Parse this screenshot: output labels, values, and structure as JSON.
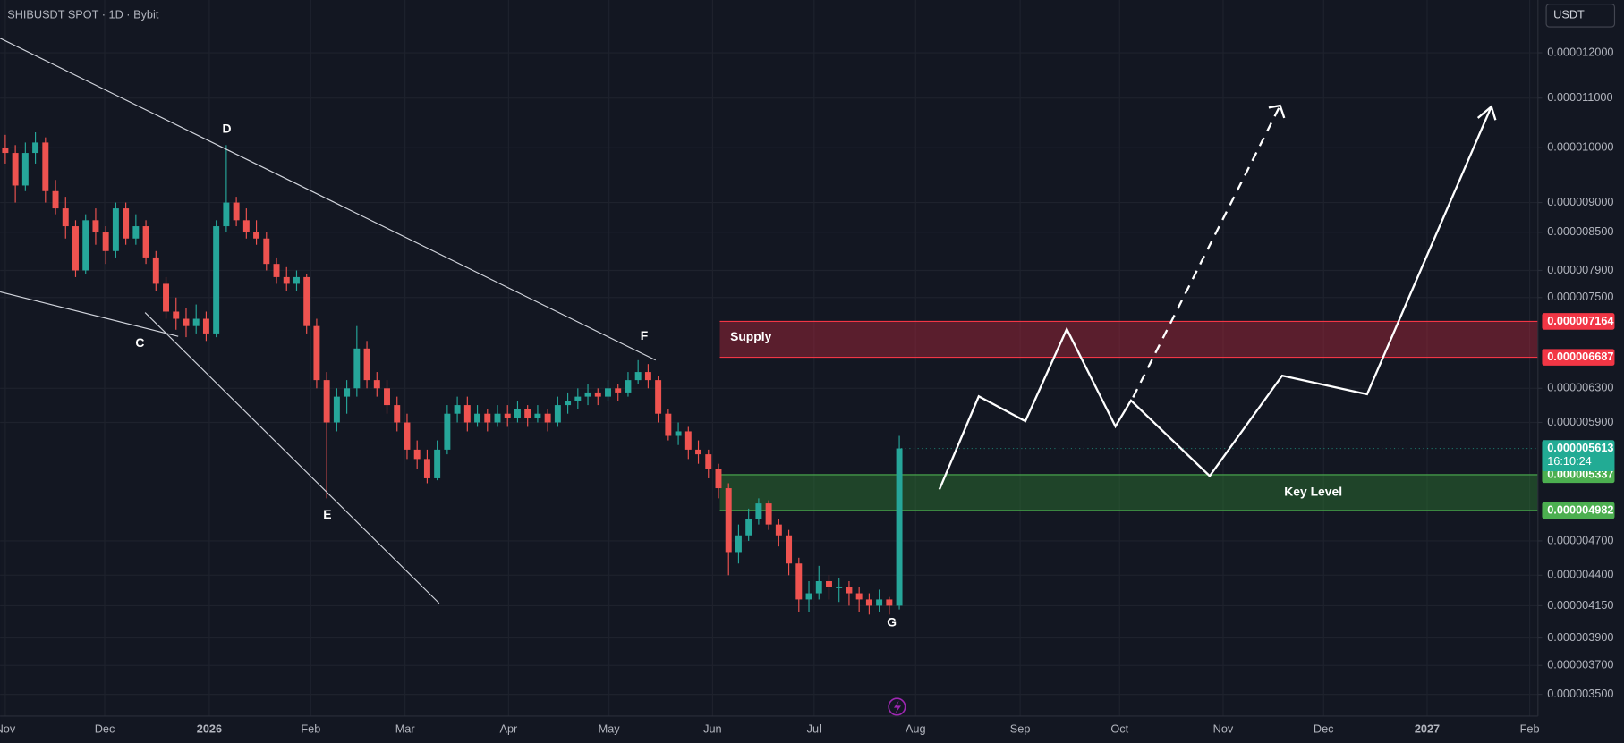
{
  "chart_data": {
    "type": "candlestick",
    "title": "SHIBUSDT SPOT · 1D · Bybit",
    "currency": "USDT",
    "log_scale": true,
    "grid": true,
    "up_color": "#26a69a",
    "down_color": "#ef5350",
    "ylim": [
      3.357e-06,
      1.328e-05
    ],
    "yticks": [
      {
        "value": 1.2e-05,
        "label": "0.000012000"
      },
      {
        "value": 1.1e-05,
        "label": "0.000011000"
      },
      {
        "value": 1e-05,
        "label": "0.000010000"
      },
      {
        "value": 9e-06,
        "label": "0.000009000"
      },
      {
        "value": 8.5e-06,
        "label": "0.000008500"
      },
      {
        "value": 7.9e-06,
        "label": "0.000007900"
      },
      {
        "value": 7.5e-06,
        "label": "0.000007500"
      },
      {
        "value": 6.3e-06,
        "label": "0.000006300"
      },
      {
        "value": 5.9e-06,
        "label": "0.000005900"
      },
      {
        "value": 4.7e-06,
        "label": "0.000004700"
      },
      {
        "value": 4.4e-06,
        "label": "0.000004400"
      },
      {
        "value": 4.15e-06,
        "label": "0.000004150"
      },
      {
        "value": 3.9e-06,
        "label": "0.000003900"
      },
      {
        "value": 3.7e-06,
        "label": "0.000003700"
      },
      {
        "value": 3.5e-06,
        "label": "0.000003500"
      }
    ],
    "xticks": [
      "Nov",
      "Dec",
      "2026",
      "Feb",
      "Mar",
      "Apr",
      "May",
      "Jun",
      "Jul",
      "Aug",
      "Sep",
      "Oct",
      "Nov",
      "Dec",
      "2027",
      "Feb"
    ],
    "candles": [
      [
        1e-05,
        1.025e-05,
        9.7e-06,
        9.9e-06
      ],
      [
        9.9e-06,
        1.005e-05,
        9e-06,
        9.3e-06
      ],
      [
        9.3e-06,
        1.01e-05,
        9.2e-06,
        9.9e-06
      ],
      [
        9.9e-06,
        1.03e-05,
        9.7e-06,
        1.01e-05
      ],
      [
        1.01e-05,
        1.02e-05,
        9e-06,
        9.2e-06
      ],
      [
        9.2e-06,
        9.4e-06,
        8.8e-06,
        8.9e-06
      ],
      [
        8.9e-06,
        9.1e-06,
        8.4e-06,
        8.6e-06
      ],
      [
        8.6e-06,
        8.7e-06,
        7.8e-06,
        7.9e-06
      ],
      [
        7.9e-06,
        8.8e-06,
        7.85e-06,
        8.7e-06
      ],
      [
        8.7e-06,
        8.9e-06,
        8.3e-06,
        8.5e-06
      ],
      [
        8.5e-06,
        8.6e-06,
        8e-06,
        8.2e-06
      ],
      [
        8.2e-06,
        9e-06,
        8.1e-06,
        8.9e-06
      ],
      [
        8.9e-06,
        9e-06,
        8.3e-06,
        8.4e-06
      ],
      [
        8.4e-06,
        8.8e-06,
        8.3e-06,
        8.6e-06
      ],
      [
        8.6e-06,
        8.7e-06,
        8e-06,
        8.1e-06
      ],
      [
        8.1e-06,
        8.2e-06,
        7.6e-06,
        7.7e-06
      ],
      [
        7.7e-06,
        7.8e-06,
        7.2e-06,
        7.3e-06
      ],
      [
        7.3e-06,
        7.5e-06,
        7.05e-06,
        7.2e-06
      ],
      [
        7.2e-06,
        7.35e-06,
        6.95e-06,
        7.1e-06
      ],
      [
        7.1e-06,
        7.4e-06,
        7e-06,
        7.2e-06
      ],
      [
        7.2e-06,
        7.3e-06,
        6.9e-06,
        7e-06
      ],
      [
        7e-06,
        8.7e-06,
        6.95e-06,
        8.6e-06
      ],
      [
        8.6e-06,
        1.005e-05,
        8.5e-06,
        9e-06
      ],
      [
        9e-06,
        9.1e-06,
        8.6e-06,
        8.7e-06
      ],
      [
        8.7e-06,
        8.9e-06,
        8.4e-06,
        8.5e-06
      ],
      [
        8.5e-06,
        8.7e-06,
        8.3e-06,
        8.4e-06
      ],
      [
        8.4e-06,
        8.5e-06,
        7.9e-06,
        8e-06
      ],
      [
        8e-06,
        8.1e-06,
        7.7e-06,
        7.8e-06
      ],
      [
        7.8e-06,
        7.95e-06,
        7.6e-06,
        7.7e-06
      ],
      [
        7.7e-06,
        7.9e-06,
        7.6e-06,
        7.8e-06
      ],
      [
        7.8e-06,
        7.85e-06,
        7e-06,
        7.1e-06
      ],
      [
        7.1e-06,
        7.2e-06,
        6.3e-06,
        6.4e-06
      ],
      [
        6.4e-06,
        6.5e-06,
        5.1e-06,
        5.9e-06
      ],
      [
        5.9e-06,
        6.3e-06,
        5.8e-06,
        6.2e-06
      ],
      [
        6.2e-06,
        6.4e-06,
        6e-06,
        6.3e-06
      ],
      [
        6.3e-06,
        7.1e-06,
        6.2e-06,
        6.8e-06
      ],
      [
        6.8e-06,
        6.9e-06,
        6.3e-06,
        6.4e-06
      ],
      [
        6.4e-06,
        6.5e-06,
        6.2e-06,
        6.3e-06
      ],
      [
        6.3e-06,
        6.4e-06,
        6e-06,
        6.1e-06
      ],
      [
        6.1e-06,
        6.2e-06,
        5.8e-06,
        5.9e-06
      ],
      [
        5.9e-06,
        6e-06,
        5.5e-06,
        5.6e-06
      ],
      [
        5.6e-06,
        5.7e-06,
        5.4e-06,
        5.5e-06
      ],
      [
        5.5e-06,
        5.6e-06,
        5.25e-06,
        5.3e-06
      ],
      [
        5.3e-06,
        5.7e-06,
        5.28e-06,
        5.6e-06
      ],
      [
        5.6e-06,
        6.1e-06,
        5.55e-06,
        6e-06
      ],
      [
        6e-06,
        6.2e-06,
        5.9e-06,
        6.1e-06
      ],
      [
        6.1e-06,
        6.2e-06,
        5.8e-06,
        5.9e-06
      ],
      [
        5.9e-06,
        6.1e-06,
        5.85e-06,
        6e-06
      ],
      [
        6e-06,
        6.05e-06,
        5.8e-06,
        5.9e-06
      ],
      [
        5.9e-06,
        6.1e-06,
        5.85e-06,
        6e-06
      ],
      [
        6e-06,
        6.1e-06,
        5.85e-06,
        5.95e-06
      ],
      [
        5.95e-06,
        6.15e-06,
        5.9e-06,
        6.05e-06
      ],
      [
        6.05e-06,
        6.1e-06,
        5.85e-06,
        5.95e-06
      ],
      [
        5.95e-06,
        6.1e-06,
        5.9e-06,
        6e-06
      ],
      [
        6e-06,
        6.05e-06,
        5.8e-06,
        5.9e-06
      ],
      [
        5.9e-06,
        6.2e-06,
        5.85e-06,
        6.1e-06
      ],
      [
        6.1e-06,
        6.25e-06,
        6e-06,
        6.15e-06
      ],
      [
        6.15e-06,
        6.3e-06,
        6.05e-06,
        6.2e-06
      ],
      [
        6.2e-06,
        6.35e-06,
        6.1e-06,
        6.25e-06
      ],
      [
        6.25e-06,
        6.3e-06,
        6.1e-06,
        6.2e-06
      ],
      [
        6.2e-06,
        6.4e-06,
        6.15e-06,
        6.3e-06
      ],
      [
        6.3e-06,
        6.35e-06,
        6.15e-06,
        6.25e-06
      ],
      [
        6.25e-06,
        6.5e-06,
        6.2e-06,
        6.4e-06
      ],
      [
        6.4e-06,
        6.65e-06,
        6.35e-06,
        6.5e-06
      ],
      [
        6.5e-06,
        6.6e-06,
        6.3e-06,
        6.4e-06
      ],
      [
        6.4e-06,
        6.45e-06,
        5.9e-06,
        6e-06
      ],
      [
        6e-06,
        6.05e-06,
        5.7e-06,
        5.75e-06
      ],
      [
        5.75e-06,
        5.9e-06,
        5.65e-06,
        5.8e-06
      ],
      [
        5.8e-06,
        5.85e-06,
        5.5e-06,
        5.6e-06
      ],
      [
        5.6e-06,
        5.7e-06,
        5.45e-06,
        5.55e-06
      ],
      [
        5.55e-06,
        5.6e-06,
        5.3e-06,
        5.4e-06
      ],
      [
        5.4e-06,
        5.45e-06,
        5.1e-06,
        5.2e-06
      ],
      [
        5.2e-06,
        5.25e-06,
        4.4e-06,
        4.6e-06
      ],
      [
        4.6e-06,
        4.85e-06,
        4.5e-06,
        4.75e-06
      ],
      [
        4.75e-06,
        5e-06,
        4.7e-06,
        4.9e-06
      ],
      [
        4.9e-06,
        5.1e-06,
        4.85e-06,
        5.05e-06
      ],
      [
        5.05e-06,
        5.08e-06,
        4.8e-06,
        4.85e-06
      ],
      [
        4.85e-06,
        4.9e-06,
        4.65e-06,
        4.75e-06
      ],
      [
        4.75e-06,
        4.8e-06,
        4.4e-06,
        4.5e-06
      ],
      [
        4.5e-06,
        4.55e-06,
        4.1e-06,
        4.2e-06
      ],
      [
        4.2e-06,
        4.35e-06,
        4.1e-06,
        4.25e-06
      ],
      [
        4.25e-06,
        4.48e-06,
        4.2e-06,
        4.35e-06
      ],
      [
        4.35e-06,
        4.4e-06,
        4.2e-06,
        4.3e-06
      ],
      [
        4.3e-06,
        4.38e-06,
        4.18e-06,
        4.3e-06
      ],
      [
        4.3e-06,
        4.35e-06,
        4.15e-06,
        4.25e-06
      ],
      [
        4.25e-06,
        4.3e-06,
        4.1e-06,
        4.2e-06
      ],
      [
        4.2e-06,
        4.25e-06,
        4.08e-06,
        4.15e-06
      ],
      [
        4.15e-06,
        4.28e-06,
        4.1e-06,
        4.2e-06
      ],
      [
        4.2e-06,
        4.22e-06,
        4.08e-06,
        4.15e-06
      ],
      [
        4.15e-06,
        5.75e-06,
        4.12e-06,
        5.613e-06
      ]
    ],
    "last_price": {
      "value": 5.613e-06,
      "label": "0.000005613",
      "countdown": "16:10:24",
      "color": "#22ab94"
    },
    "zones": [
      {
        "name": "Supply",
        "color": "#b2283b",
        "edge_color": "#f23645",
        "high": {
          "value": 7.164e-06,
          "label": "0.000007164"
        },
        "low": {
          "value": 6.687e-06,
          "label": "0.000006687"
        }
      },
      {
        "name": "Key Level",
        "color": "#2e7d32",
        "edge_color": "#4caf50",
        "high": {
          "value": 5.337e-06,
          "label": "0.000005337"
        },
        "low": {
          "value": 4.982e-06,
          "label": "0.000004982"
        }
      }
    ],
    "points": [
      "C",
      "D",
      "E",
      "F",
      "G"
    ]
  }
}
